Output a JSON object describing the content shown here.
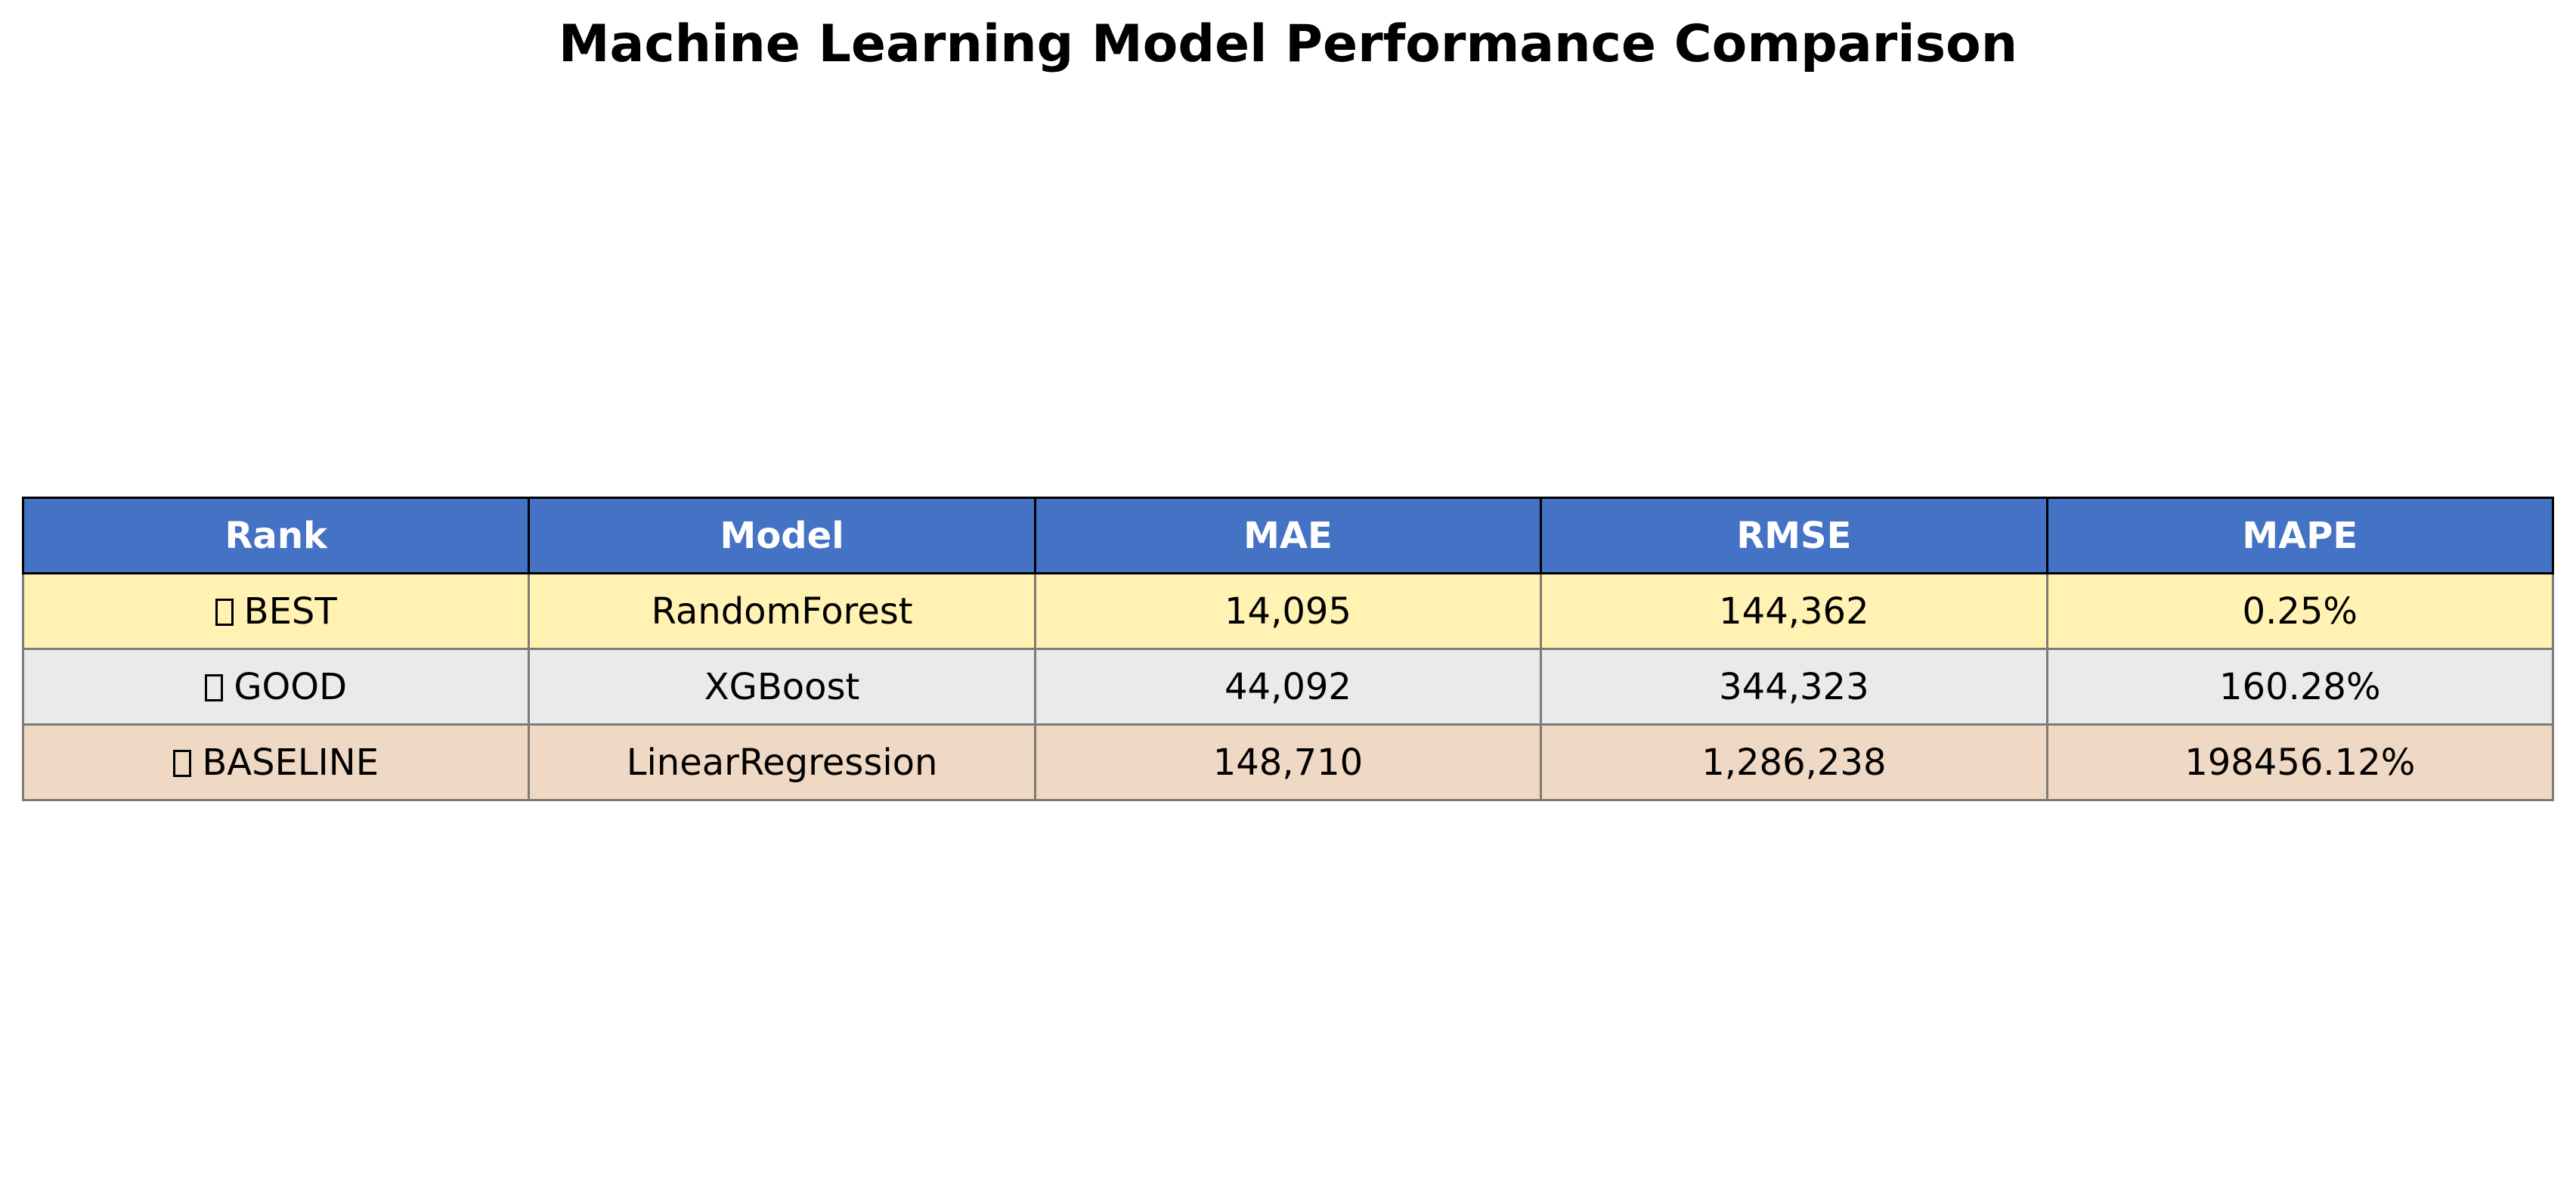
{
  "chart_data": {
    "type": "table",
    "title": "Machine Learning Model Performance Comparison",
    "columns": [
      "Rank",
      "Model",
      "MAE",
      "RMSE",
      "MAPE"
    ],
    "rows": [
      {
        "rank": "BEST",
        "model": "RandomForest",
        "mae": "14,095",
        "rmse": "144,362",
        "mape": "0.25%",
        "color": "#fff2b3"
      },
      {
        "rank": "GOOD",
        "model": "XGBoost",
        "mae": "44,092",
        "rmse": "344,323",
        "mape": "160.28%",
        "color": "#eaeaea"
      },
      {
        "rank": "BASELINE",
        "model": "LinearRegression",
        "mae": "148,710",
        "rmse": "1,286,238",
        "mape": "198456.12%",
        "color": "#f0d9c4"
      }
    ],
    "header_color": "#4472c4",
    "header_text_color": "#ffffff"
  }
}
